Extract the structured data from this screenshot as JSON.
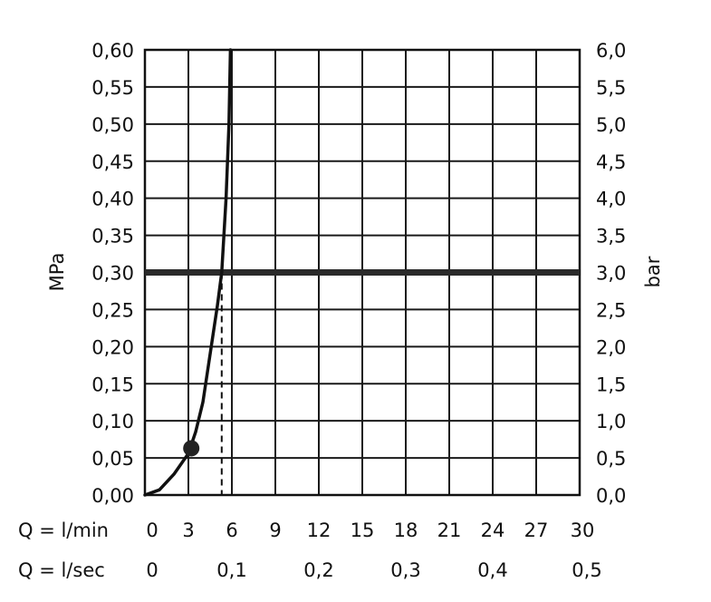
{
  "chart_data": {
    "type": "line",
    "ylabel_left": "MPa",
    "ylabel_right": "bar",
    "x_row_labels": [
      "Q = l/min",
      "Q = l/sec"
    ],
    "xlim": [
      0,
      30
    ],
    "ylim": [
      0,
      0.6
    ],
    "x_ticks_lmin": [
      "0",
      "3",
      "6",
      "9",
      "12",
      "15",
      "18",
      "21",
      "24",
      "27",
      "30"
    ],
    "x_ticks_lsec": [
      {
        "value": 0,
        "label": "0"
      },
      {
        "value": 6,
        "label": "0,1"
      },
      {
        "value": 12,
        "label": "0,2"
      },
      {
        "value": 18,
        "label": "0,3"
      },
      {
        "value": 24,
        "label": "0,4"
      },
      {
        "value": 30,
        "label": "0,5"
      }
    ],
    "y_ticks_left": [
      "0,00",
      "0,05",
      "0,10",
      "0,15",
      "0,20",
      "0,25",
      "0,30",
      "0,35",
      "0,40",
      "0,45",
      "0,50",
      "0,55",
      "0,60"
    ],
    "y_ticks_right": [
      "0,0",
      "0,5",
      "1,0",
      "1,5",
      "2,0",
      "2,5",
      "3,0",
      "3,5",
      "4,0",
      "4,5",
      "5,0",
      "5,5",
      "6,0"
    ],
    "grid": true,
    "reference_line_y": 0.3,
    "reference_flow_x": 5.3,
    "marker_point": {
      "x": 3.2,
      "y": 0.063
    },
    "series": [
      {
        "x": [
          0,
          1,
          2,
          3,
          3.5,
          4,
          4.5,
          5,
          5.3,
          5.6,
          5.8,
          5.9
        ],
        "y": [
          0,
          0.007,
          0.028,
          0.056,
          0.085,
          0.125,
          0.19,
          0.255,
          0.3,
          0.4,
          0.5,
          0.6
        ]
      }
    ]
  }
}
